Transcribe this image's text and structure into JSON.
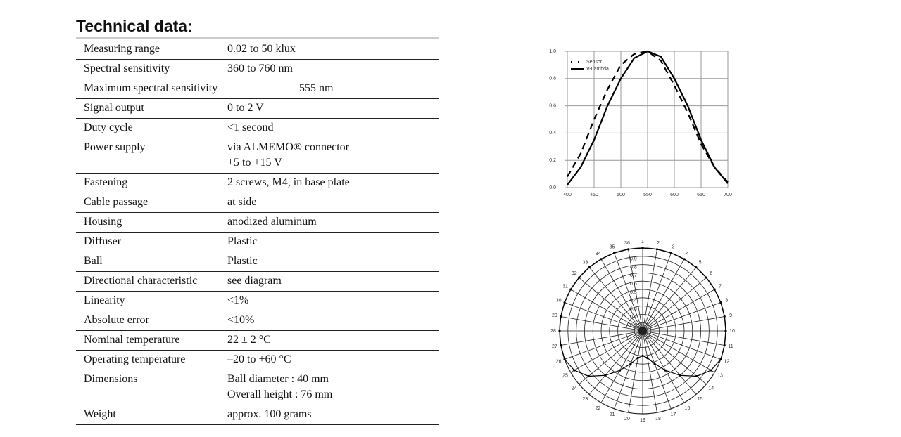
{
  "title": "Technical data:",
  "table": {
    "rows": [
      [
        "Measuring range",
        [
          "0.02 to 50 klux"
        ]
      ],
      [
        "Spectral sensitivity",
        [
          "360 to 760 nm"
        ]
      ],
      [
        "Maximum spectral sensitivity",
        [
          "555 nm"
        ]
      ],
      [
        "Signal output",
        [
          "0 to 2 V"
        ]
      ],
      [
        "Duty cycle",
        [
          "<1 second"
        ]
      ],
      [
        "Power supply",
        [
          "via ALMEMO® connector",
          "+5 to +15 V"
        ]
      ],
      [
        "Fastening",
        [
          "2 screws, M4, in base plate"
        ]
      ],
      [
        "Cable passage",
        [
          "at side"
        ]
      ],
      [
        "Housing",
        [
          "anodized aluminum"
        ]
      ],
      [
        "Diffuser",
        [
          "Plastic"
        ]
      ],
      [
        "Ball",
        [
          "Plastic"
        ]
      ],
      [
        "Directional characteristic",
        [
          "see diagram"
        ]
      ],
      [
        "Linearity",
        [
          "<1%"
        ]
      ],
      [
        "Absolute error",
        [
          "<10%"
        ]
      ],
      [
        "Nominal temperature",
        [
          "22 ± 2 °C"
        ]
      ],
      [
        "Operating temperature",
        [
          "–20 to +60 °C"
        ]
      ],
      [
        "Dimensions",
        [
          "Ball diameter : 40 mm",
          "Overall height : 76 mm"
        ]
      ],
      [
        "Weight",
        [
          "approx. 100 grams"
        ]
      ]
    ]
  },
  "chart_data": [
    {
      "type": "line",
      "x": [
        400,
        425,
        450,
        475,
        500,
        525,
        550,
        575,
        600,
        625,
        650,
        675,
        700
      ],
      "series": [
        {
          "name": "Sensor",
          "color": "#000",
          "dash": true,
          "values": [
            0.08,
            0.25,
            0.5,
            0.72,
            0.9,
            0.98,
            1.0,
            0.93,
            0.75,
            0.55,
            0.32,
            0.15,
            0.04
          ]
        },
        {
          "name": "V-Lambda",
          "color": "#000",
          "dash": false,
          "values": [
            0.02,
            0.15,
            0.35,
            0.6,
            0.8,
            0.95,
            1.0,
            0.96,
            0.8,
            0.6,
            0.35,
            0.15,
            0.03
          ]
        }
      ],
      "xlim": [
        400,
        700
      ],
      "xticks": [
        400,
        450,
        500,
        550,
        600,
        650,
        700
      ],
      "ylim": [
        0,
        1
      ],
      "yticks": [
        {
          "value": 0,
          "label": "0.0"
        },
        0.2,
        0.4,
        0.6,
        0.8,
        {
          "value": 1,
          "label": "1.0"
        }
      ],
      "grid": true,
      "legend": "upper left"
    },
    {
      "type": "polar",
      "categories": [
        1,
        2,
        3,
        4,
        5,
        6,
        7,
        8,
        9,
        10,
        11,
        12,
        13,
        14,
        15,
        16,
        17,
        18,
        19,
        20,
        21,
        22,
        23,
        24,
        25,
        26,
        27,
        28,
        29,
        30,
        31,
        32,
        33,
        34,
        35,
        36
      ],
      "values": [
        1,
        1,
        1,
        1,
        1,
        1,
        1,
        1,
        1,
        1,
        1,
        1,
        0.95,
        0.85,
        0.7,
        0.55,
        0.42,
        0.33,
        0.3,
        0.33,
        0.42,
        0.55,
        0.7,
        0.85,
        0.95,
        1,
        1,
        1,
        1,
        1,
        1,
        1,
        1,
        1,
        1,
        1
      ],
      "color": "#000",
      "rlim": [
        0,
        1
      ],
      "rticks": [
        0.9,
        0.8,
        0.7,
        0.6,
        0.5,
        0.4,
        0.3,
        0.2,
        0.1
      ]
    }
  ]
}
